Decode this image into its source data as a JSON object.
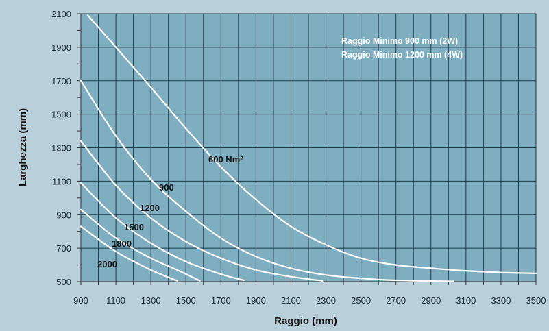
{
  "chart_data": {
    "type": "line",
    "title": "",
    "xlabel": "Raggio (mm)",
    "ylabel": "Larghezza (mm)",
    "xlim": [
      900,
      3500
    ],
    "ylim": [
      500,
      2100
    ],
    "x_ticks": [
      900,
      1100,
      1300,
      1500,
      1700,
      1900,
      2100,
      2300,
      2500,
      2700,
      2900,
      3100,
      3300,
      3500
    ],
    "y_ticks": [
      500,
      700,
      900,
      1100,
      1300,
      1500,
      1700,
      1900,
      2100
    ],
    "grid": true,
    "legend": "none",
    "colors": {
      "plot_bg": "#7faec1",
      "page_bg": "#b9cfd9",
      "grid": "#1f3a47",
      "curve": "#ffffff"
    },
    "notes": [
      "Raggio Minimo 900 mm (2W)",
      "Raggio Minimo 1200 mm (4W)"
    ],
    "series": [
      {
        "label": "600 Nm²",
        "points": [
          [
            940,
            2090
          ],
          [
            1100,
            1900
          ],
          [
            1300,
            1660
          ],
          [
            1500,
            1415
          ],
          [
            1700,
            1185
          ],
          [
            1900,
            990
          ],
          [
            2100,
            830
          ],
          [
            2300,
            720
          ],
          [
            2500,
            640
          ],
          [
            2700,
            600
          ],
          [
            2900,
            580
          ],
          [
            3100,
            565
          ],
          [
            3300,
            555
          ],
          [
            3500,
            550
          ]
        ]
      },
      {
        "label": "900",
        "points": [
          [
            900,
            1700
          ],
          [
            1100,
            1370
          ],
          [
            1300,
            1110
          ],
          [
            1500,
            920
          ],
          [
            1700,
            760
          ],
          [
            1900,
            650
          ],
          [
            2100,
            580
          ],
          [
            2300,
            540
          ],
          [
            2500,
            520
          ],
          [
            2700,
            508
          ],
          [
            3030,
            502
          ]
        ]
      },
      {
        "label": "1200",
        "points": [
          [
            900,
            1340
          ],
          [
            1100,
            1075
          ],
          [
            1300,
            880
          ],
          [
            1500,
            740
          ],
          [
            1700,
            640
          ],
          [
            1900,
            570
          ],
          [
            2100,
            530
          ],
          [
            2280,
            505
          ]
        ]
      },
      {
        "label": "1500",
        "points": [
          [
            900,
            1090
          ],
          [
            1100,
            880
          ],
          [
            1300,
            730
          ],
          [
            1500,
            620
          ],
          [
            1700,
            545
          ],
          [
            1830,
            508
          ]
        ]
      },
      {
        "label": "1800",
        "points": [
          [
            900,
            930
          ],
          [
            1100,
            760
          ],
          [
            1300,
            640
          ],
          [
            1450,
            570
          ],
          [
            1580,
            505
          ]
        ]
      },
      {
        "label": "2000",
        "points": [
          [
            900,
            830
          ],
          [
            1100,
            680
          ],
          [
            1300,
            570
          ],
          [
            1450,
            505
          ]
        ]
      }
    ]
  }
}
